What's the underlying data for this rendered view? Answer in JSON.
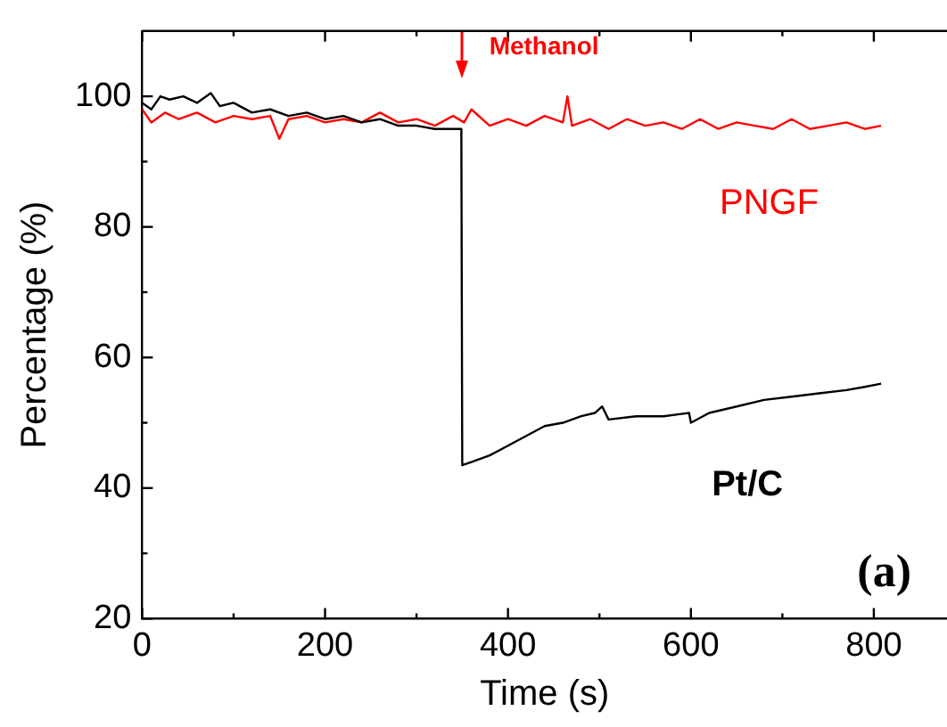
{
  "chart_data": {
    "type": "line",
    "xlabel": "Time (s)",
    "ylabel": "Percentage (%)",
    "xlim": [
      0,
      880
    ],
    "xticks": [
      0,
      {
        "value": 100,
        "label": null
      },
      200,
      {
        "value": 300,
        "label": null
      },
      400,
      {
        "value": 500,
        "label": null
      },
      600,
      {
        "value": 700,
        "label": null
      },
      800
    ],
    "ylim": [
      20,
      110
    ],
    "yticks": [
      20,
      {
        "value": 30,
        "label": null
      },
      40,
      {
        "value": 50,
        "label": null
      },
      60,
      {
        "value": 70,
        "label": null
      },
      80,
      {
        "value": 90,
        "label": null
      },
      100
    ],
    "grid": false,
    "legend": false,
    "marker": "none",
    "line_style": "solid",
    "series": [
      {
        "name": "Pt/C",
        "color": "#000000",
        "x": [
          0,
          10,
          20,
          30,
          45,
          60,
          75,
          85,
          100,
          120,
          140,
          160,
          180,
          200,
          220,
          240,
          260,
          280,
          300,
          320,
          340,
          349,
          350,
          360,
          380,
          400,
          420,
          440,
          460,
          480,
          495,
          503,
          510,
          540,
          570,
          598,
          600,
          620,
          650,
          680,
          710,
          740,
          770,
          790,
          808
        ],
        "values": [
          99,
          98,
          100,
          99.5,
          100,
          99,
          100.5,
          98.5,
          99,
          97.5,
          98,
          97,
          97.5,
          96.5,
          97,
          96,
          96.5,
          95.5,
          95.5,
          95,
          95,
          95,
          43.5,
          44,
          45,
          46.5,
          48,
          49.5,
          50,
          51,
          51.5,
          52.5,
          50.5,
          51,
          51,
          51.5,
          50,
          51.5,
          52.5,
          53.5,
          54,
          54.5,
          55,
          55.5,
          56
        ]
      },
      {
        "name": "PNGF",
        "color": "#ff0000",
        "x": [
          0,
          10,
          25,
          40,
          60,
          80,
          100,
          120,
          140,
          150,
          160,
          180,
          200,
          220,
          240,
          260,
          280,
          300,
          320,
          340,
          352,
          360,
          380,
          400,
          420,
          440,
          460,
          465,
          470,
          490,
          510,
          530,
          550,
          570,
          590,
          610,
          630,
          650,
          670,
          690,
          710,
          730,
          750,
          770,
          790,
          808
        ],
        "values": [
          98,
          96,
          97.5,
          96.5,
          97.5,
          96,
          97,
          96.5,
          97,
          93.5,
          96.5,
          97,
          96,
          96.5,
          96,
          97.5,
          96,
          96.5,
          95.5,
          97,
          96,
          98,
          95.5,
          96.5,
          95.5,
          97,
          96,
          100,
          95.5,
          96.5,
          95,
          96.5,
          95.5,
          96,
          95,
          96.5,
          95,
          96,
          95.5,
          95,
          96.5,
          95,
          95.5,
          96,
          95,
          95.5
        ]
      }
    ],
    "annotations": [
      "Methanol",
      "(a)"
    ]
  }
}
